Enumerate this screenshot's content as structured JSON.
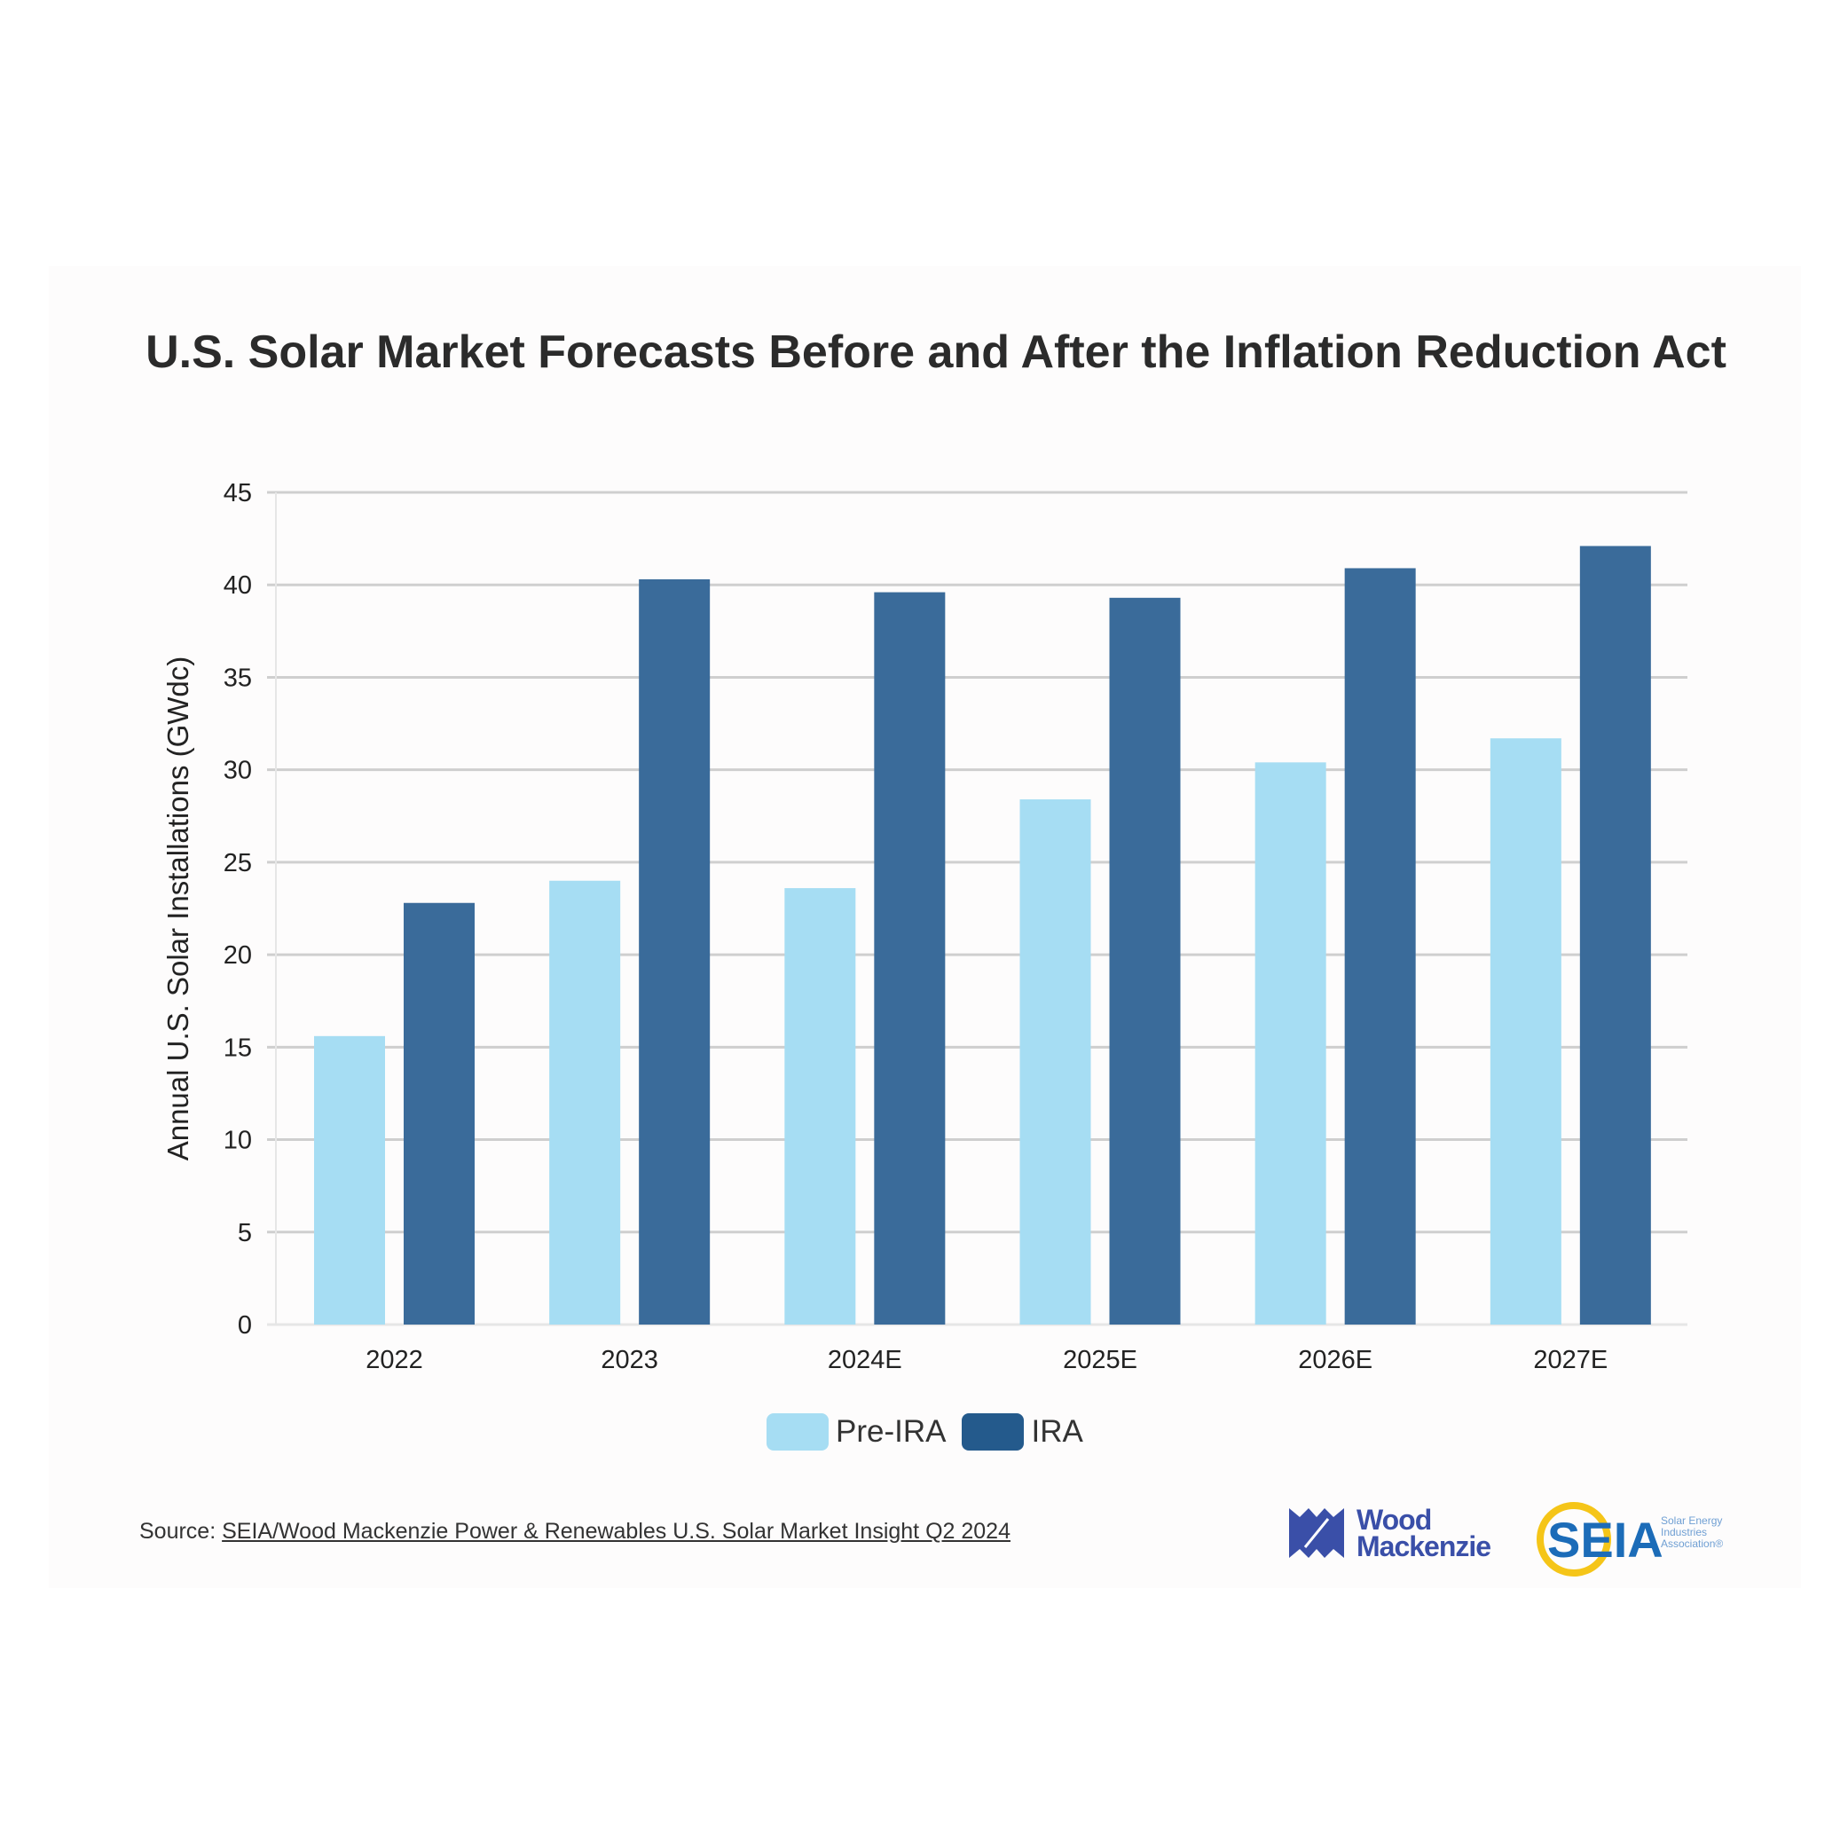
{
  "chart_data": {
    "type": "bar",
    "title": "U.S. Solar Market Forecasts Before and After the Inflation Reduction Act",
    "ylabel": "Annual U.S. Solar Installations (GWdc)",
    "xlabel": "",
    "categories": [
      "2022",
      "2023",
      "2024E",
      "2025E",
      "2026E",
      "2027E"
    ],
    "series": [
      {
        "name": "Pre-IRA",
        "color": "#a6ddf3",
        "values": [
          15.6,
          24.0,
          23.6,
          28.4,
          30.4,
          31.7
        ]
      },
      {
        "name": "IRA",
        "color": "#3a6b9a",
        "values": [
          22.8,
          40.3,
          39.6,
          39.3,
          40.9,
          42.1
        ]
      }
    ],
    "ylim": [
      0,
      45
    ],
    "yticks": [
      0,
      5,
      10,
      15,
      20,
      25,
      30,
      35,
      40,
      45
    ],
    "grid": true,
    "legend": "bottom-center"
  },
  "legend_colors": {
    "Pre-IRA": "#a6ddf3",
    "IRA": "#245a8c"
  },
  "source": {
    "label": "Source:",
    "link": "SEIA/Wood Mackenzie Power & Renewables U.S. Solar Market Insight Q2 2024"
  },
  "logos": {
    "wood_mackenzie": [
      "Wood",
      "Mackenzie"
    ],
    "seia": "SEIA",
    "seia_tagline": [
      "Solar Energy",
      "Industries",
      "Association®"
    ]
  }
}
